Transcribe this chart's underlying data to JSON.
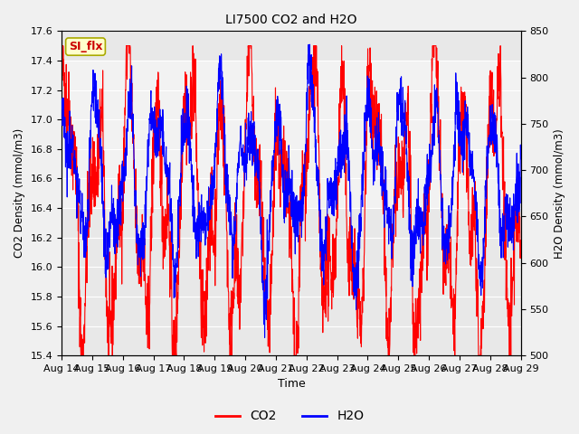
{
  "title": "LI7500 CO2 and H2O",
  "xlabel": "Time",
  "ylabel_left": "CO2 Density (mmol/m3)",
  "ylabel_right": "H2O Density (mmol/m3)",
  "co2_ylim": [
    15.4,
    17.6
  ],
  "h2o_ylim": [
    500,
    850
  ],
  "co2_yticks": [
    15.4,
    15.6,
    15.8,
    16.0,
    16.2,
    16.4,
    16.6,
    16.8,
    17.0,
    17.2,
    17.4,
    17.6
  ],
  "h2o_yticks": [
    500,
    550,
    600,
    650,
    700,
    750,
    800,
    850
  ],
  "x_tick_labels": [
    "Aug 14",
    "Aug 15",
    "Aug 16",
    "Aug 17",
    "Aug 18",
    "Aug 19",
    "Aug 20",
    "Aug 21",
    "Aug 22",
    "Aug 23",
    "Aug 24",
    "Aug 25",
    "Aug 26",
    "Aug 27",
    "Aug 28",
    "Aug 29"
  ],
  "co2_color": "#ff0000",
  "h2o_color": "#0000ff",
  "legend_label_co2": "CO2",
  "legend_label_h2o": "H2O",
  "watermark_text": "SI_flx",
  "watermark_facecolor": "#ffffcc",
  "watermark_edgecolor": "#aaaa00",
  "watermark_textcolor": "#cc0000",
  "bg_color_inner": "#e8e8e8",
  "bg_color_outer": "#f0f0f0",
  "band_color": "#ffffff",
  "line_width": 0.8,
  "n_points": 2000,
  "seed": 42
}
